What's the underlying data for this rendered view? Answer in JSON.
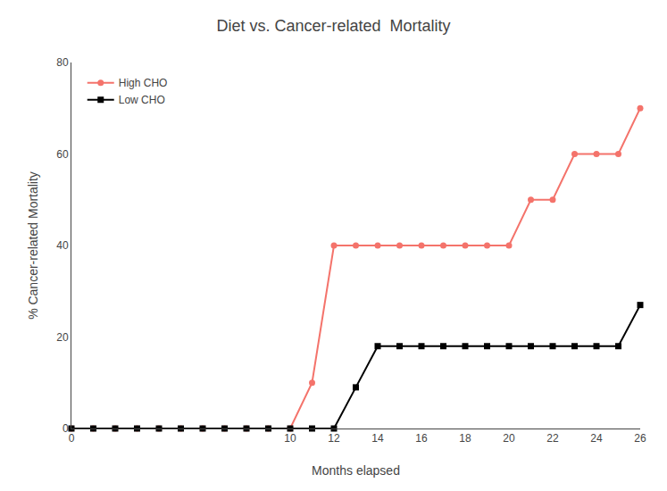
{
  "chart_data": {
    "type": "line",
    "title": "Diet vs. Cancer-related  Mortality",
    "xlabel": "Months elapsed",
    "ylabel": "% Cancer-related Mortality",
    "x": [
      0,
      1,
      2,
      3,
      4,
      5,
      6,
      7,
      8,
      9,
      10,
      11,
      12,
      13,
      14,
      15,
      16,
      17,
      18,
      19,
      20,
      21,
      22,
      23,
      24,
      25,
      26
    ],
    "series": [
      {
        "name": "High CHO",
        "color": "#F4736B",
        "marker": "circle",
        "line_style": "solid",
        "values": [
          0,
          0,
          0,
          0,
          0,
          0,
          0,
          0,
          0,
          0,
          0,
          10,
          40,
          40,
          40,
          40,
          40,
          40,
          40,
          40,
          40,
          50,
          50,
          60,
          60,
          60,
          70
        ]
      },
      {
        "name": "Low CHO",
        "color": "#000000",
        "marker": "square",
        "line_style": "solid",
        "values": [
          0,
          0,
          0,
          0,
          0,
          0,
          0,
          0,
          0,
          0,
          0,
          0,
          0,
          9,
          18,
          18,
          18,
          18,
          18,
          18,
          18,
          18,
          18,
          18,
          18,
          18,
          27
        ]
      }
    ],
    "xlim": [
      0,
      26
    ],
    "ylim": [
      0,
      80
    ],
    "xticks": [
      0,
      10,
      12,
      14,
      16,
      18,
      20,
      22,
      24,
      26
    ],
    "yticks": [
      0,
      20,
      40,
      60,
      80
    ],
    "grid": false,
    "legend": "upper left"
  }
}
